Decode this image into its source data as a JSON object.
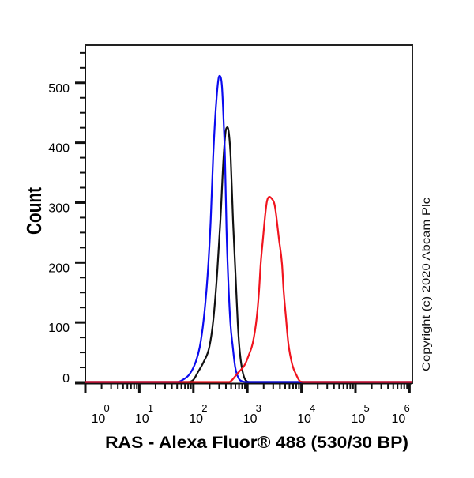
{
  "chart_data": {
    "type": "line",
    "plot_style": "histogram-overlay",
    "title": "",
    "xlabel": "RAS - Alexa Fluor® 488 (530/30 BP)",
    "ylabel": "Count",
    "xscale": "log",
    "yscale": "linear",
    "xlim": [
      1,
      1130000
    ],
    "ylim": [
      0,
      563
    ],
    "grid": false,
    "legend": null,
    "x_axis": {
      "ticks": [
        {
          "value": 1,
          "base": "10",
          "exp": "0"
        },
        {
          "value": 10,
          "base": "10",
          "exp": "1"
        },
        {
          "value": 100,
          "base": "10",
          "exp": "2"
        },
        {
          "value": 1000,
          "base": "10",
          "exp": "3"
        },
        {
          "value": 10000,
          "base": "10",
          "exp": "4"
        },
        {
          "value": 100000,
          "base": "10",
          "exp": "5"
        },
        {
          "value": 1000000,
          "base": "10",
          "exp": "6"
        }
      ],
      "minor_ticks": "2-9 x each decade"
    },
    "y_axis": {
      "ticks": [
        0,
        100,
        200,
        300,
        400,
        500
      ],
      "minor_step": 25
    },
    "series": [
      {
        "name": "black",
        "color": "#111111",
        "peak": {
          "x": 428,
          "count": 425
        },
        "points": [
          [
            1,
            0
          ],
          [
            80,
            0
          ],
          [
            101,
            4
          ],
          [
            119,
            15
          ],
          [
            156,
            34
          ],
          [
            197,
            58
          ],
          [
            234,
            104
          ],
          [
            276,
            183
          ],
          [
            316,
            269
          ],
          [
            362,
            375
          ],
          [
            400,
            421
          ],
          [
            428,
            425
          ],
          [
            458,
            412
          ],
          [
            490,
            375
          ],
          [
            542,
            269
          ],
          [
            600,
            183
          ],
          [
            663,
            98
          ],
          [
            710,
            58
          ],
          [
            785,
            25
          ],
          [
            898,
            5
          ],
          [
            1099,
            0
          ],
          [
            1130000,
            0
          ]
        ]
      },
      {
        "name": "blue",
        "color": "#0b0bef",
        "peak": {
          "x": 303,
          "count": 511
        },
        "points": [
          [
            1,
            0
          ],
          [
            51,
            0
          ],
          [
            65,
            4
          ],
          [
            85,
            13
          ],
          [
            111,
            34
          ],
          [
            131,
            58
          ],
          [
            155,
            104
          ],
          [
            183,
            177
          ],
          [
            209,
            269
          ],
          [
            232,
            375
          ],
          [
            265,
            467
          ],
          [
            303,
            511
          ],
          [
            336,
            496
          ],
          [
            371,
            414
          ],
          [
            384,
            375
          ],
          [
            410,
            256
          ],
          [
            439,
            177
          ],
          [
            485,
            98
          ],
          [
            537,
            58
          ],
          [
            594,
            25
          ],
          [
            679,
            7
          ],
          [
            804,
            1
          ],
          [
            984,
            0
          ],
          [
            1130000,
            0
          ]
        ]
      },
      {
        "name": "red",
        "color": "#f0141e",
        "peak": {
          "x": 2549,
          "count": 309
        },
        "points": [
          [
            1,
            0
          ],
          [
            458,
            0
          ],
          [
            530,
            4
          ],
          [
            600,
            10
          ],
          [
            700,
            17
          ],
          [
            898,
            29
          ],
          [
            1062,
            45
          ],
          [
            1256,
            65
          ],
          [
            1489,
            108
          ],
          [
            1644,
            153
          ],
          [
            1762,
            197
          ],
          [
            1946,
            240
          ],
          [
            2153,
            282
          ],
          [
            2306,
            302
          ],
          [
            2549,
            309
          ],
          [
            2818,
            306
          ],
          [
            3119,
            299
          ],
          [
            3335,
            285
          ],
          [
            3570,
            263
          ],
          [
            3819,
            240
          ],
          [
            4368,
            197
          ],
          [
            4677,
            153
          ],
          [
            5166,
            108
          ],
          [
            5715,
            65
          ],
          [
            6761,
            29
          ],
          [
            8017,
            12
          ],
          [
            9480,
            1
          ],
          [
            11220,
            0
          ],
          [
            1130000,
            0
          ]
        ]
      }
    ],
    "annotations": [
      {
        "text": "Copyright (c) 2020 Abcam Plc",
        "position": "right margin, vertical"
      }
    ]
  }
}
